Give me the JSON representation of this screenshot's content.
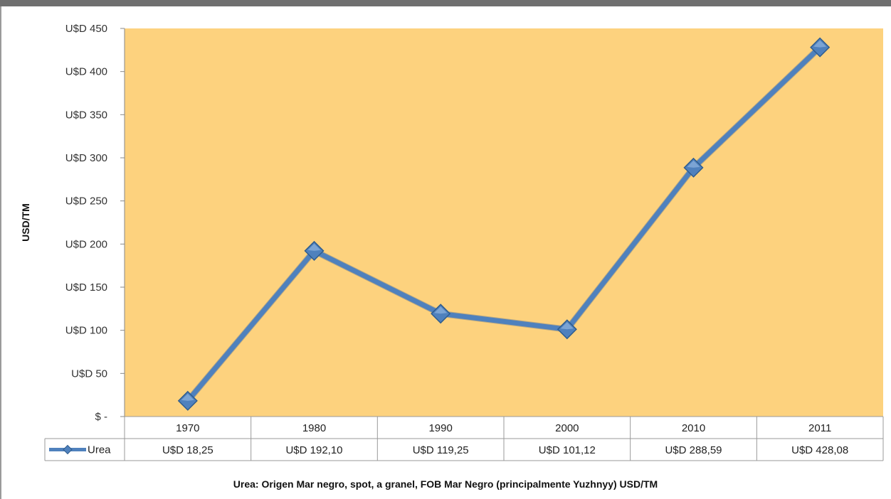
{
  "chart_data": {
    "type": "line",
    "title": "",
    "ylabel": "USD/TM",
    "xlabel": "",
    "ylim": [
      0,
      450
    ],
    "y_ticks": [
      {
        "value": 0,
        "label": "$ -"
      },
      {
        "value": 50,
        "label": "U$D 50"
      },
      {
        "value": 100,
        "label": "U$D 100"
      },
      {
        "value": 150,
        "label": "U$D 150"
      },
      {
        "value": 200,
        "label": "U$D 200"
      },
      {
        "value": 250,
        "label": "U$D 250"
      },
      {
        "value": 300,
        "label": "U$D 300"
      },
      {
        "value": 350,
        "label": "U$D 350"
      },
      {
        "value": 400,
        "label": "U$D 400"
      },
      {
        "value": 450,
        "label": "U$D 450"
      }
    ],
    "categories": [
      "1970",
      "1980",
      "1990",
      "2000",
      "2010",
      "2011"
    ],
    "series": [
      {
        "name": "Urea",
        "values": [
          18.25,
          192.1,
          119.25,
          101.12,
          288.59,
          428.08
        ],
        "labels": [
          "U$D 18,25",
          "U$D 192,10",
          "U$D 119,25",
          "U$D 101,12",
          "U$D 288,59",
          "U$D 428,08"
        ],
        "color": "#4f81bd"
      }
    ],
    "plot_background": "#fdd27e",
    "grid": false,
    "legend": "data-table"
  },
  "caption": "Urea: Origen Mar negro, spot, a granel, FOB Mar Negro (principalmente Yuzhnyy) USD/TM"
}
